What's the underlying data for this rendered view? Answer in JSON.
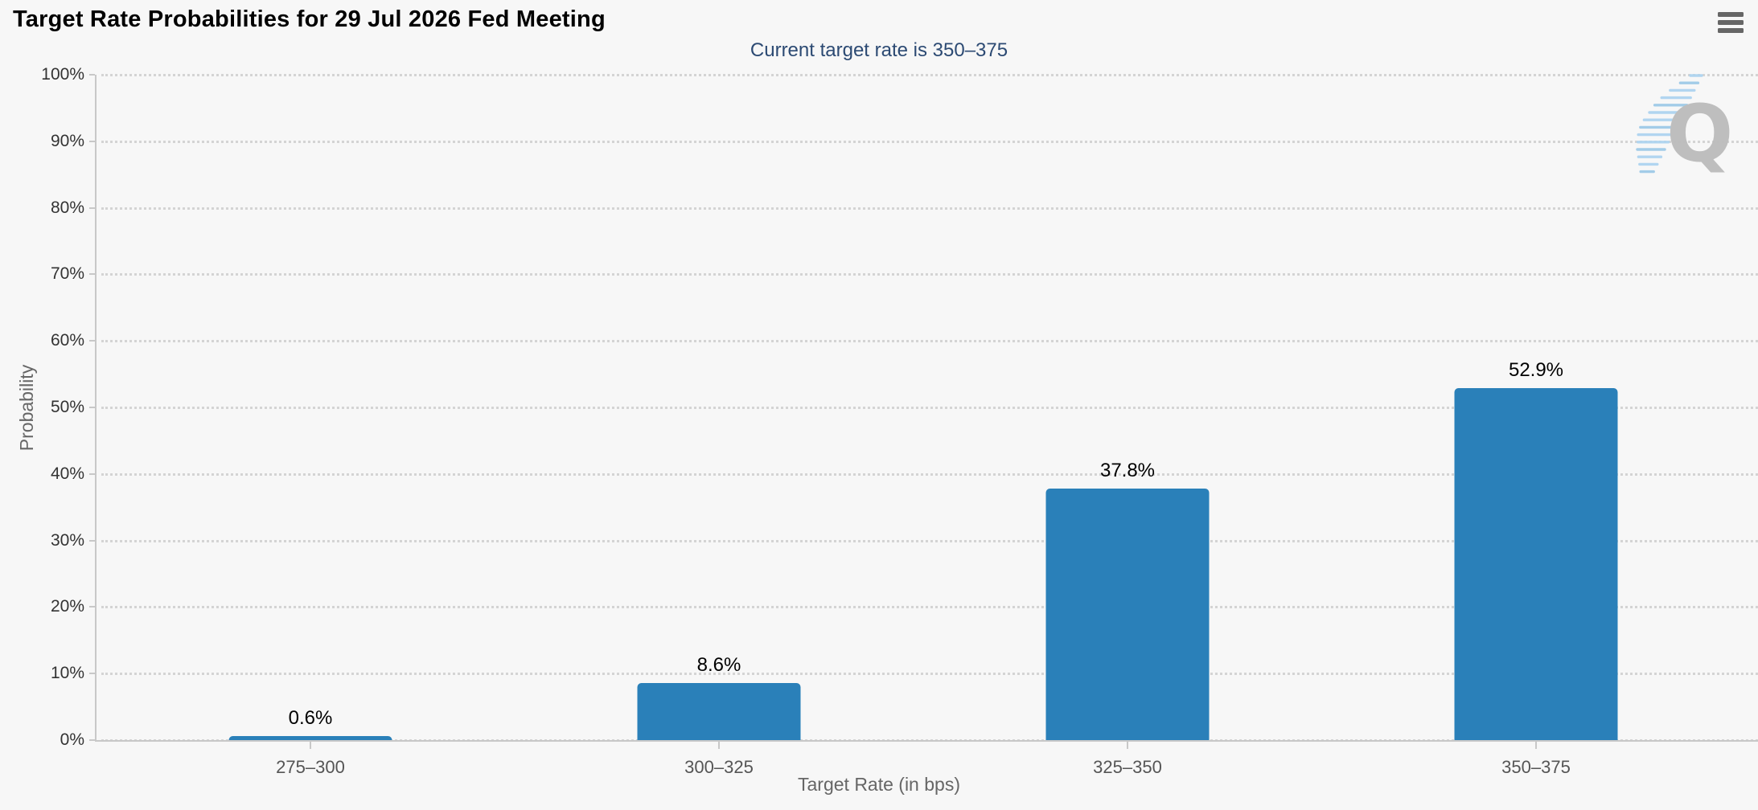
{
  "header": {
    "title": "Target Rate Probabilities for 29 Jul 2026 Fed Meeting",
    "menu_icon": "hamburger-icon"
  },
  "subtitle": "Current target rate is 350–375",
  "watermark": {
    "letter": "Q"
  },
  "chart_data": {
    "type": "bar",
    "title": "Target Rate Probabilities for 29 Jul 2026 Fed Meeting",
    "subtitle": "Current target rate is 350–375",
    "categories": [
      "275–300",
      "300–325",
      "325–350",
      "350–375"
    ],
    "values": [
      0.6,
      8.6,
      37.8,
      52.9
    ],
    "value_labels": [
      "0.6%",
      "8.6%",
      "37.8%",
      "52.9%"
    ],
    "xlabel": "Target Rate (in bps)",
    "ylabel": "Probability",
    "ylim": [
      0,
      100
    ],
    "ytick_step": 10,
    "ytick_labels": [
      "0%",
      "10%",
      "20%",
      "30%",
      "40%",
      "50%",
      "60%",
      "70%",
      "80%",
      "90%",
      "100%"
    ],
    "grid": "dotted horizontal",
    "legend": "none",
    "bar_color": "#2a80b9"
  },
  "colors": {
    "background": "#f7f7f7",
    "bar": "#2a80b9",
    "subtitle_text": "#2c4a73",
    "axis_line": "#c8c8c8",
    "grid_dots": "#d4d4d4",
    "y_label_text": "#333333",
    "x_label_text": "#555555",
    "axis_title_text": "#666666",
    "menu_icon": "#666666",
    "watermark_gray": "#bcbcbc",
    "watermark_blue": "#aed4f0"
  }
}
